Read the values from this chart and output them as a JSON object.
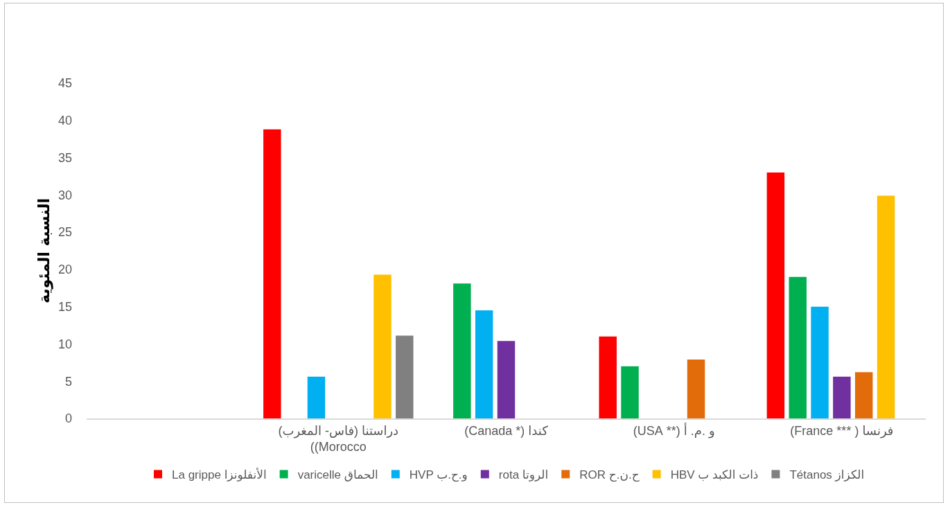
{
  "chart_data": {
    "type": "bar",
    "ylabel": "النسبة المئوية",
    "categories": [
      null,
      "دراستنا (فاس- المغرب) Morocco))",
      "كندا (* Canada)",
      "و .م. أ (** USA)",
      "فرنسا ( *** France)"
    ],
    "series": [
      {
        "name": "La grippe الأنفلونزا",
        "color": "#ff0000",
        "values": [
          null,
          38.8,
          null,
          11,
          33
        ]
      },
      {
        "name": "varicelle الحماق",
        "color": "#00b050",
        "values": [
          null,
          null,
          18.1,
          7,
          19
        ]
      },
      {
        "name": "HVP و.ح.ب",
        "color": "#00b0f0",
        "values": [
          null,
          5.6,
          14.5,
          null,
          15
        ]
      },
      {
        "name": "rota الروتا",
        "color": "#7030a0",
        "values": [
          null,
          null,
          10.4,
          null,
          5.6
        ]
      },
      {
        "name": "ROR ح.ن.ح",
        "color": "#e36c0a",
        "values": [
          null,
          null,
          null,
          7.9,
          6.2
        ]
      },
      {
        "name": "HBV ذات الكبد ب",
        "color": "#ffc000",
        "values": [
          null,
          19.3,
          null,
          null,
          29.9
        ]
      },
      {
        "name": "Tétanos الكزاز",
        "color": "#808080",
        "values": [
          null,
          11.1,
          null,
          null,
          null
        ]
      }
    ],
    "ylim": [
      0,
      45
    ],
    "yticks": [
      0,
      5,
      10,
      15,
      20,
      25,
      30,
      35,
      40,
      45
    ],
    "grid": false,
    "legend": "bottom"
  }
}
